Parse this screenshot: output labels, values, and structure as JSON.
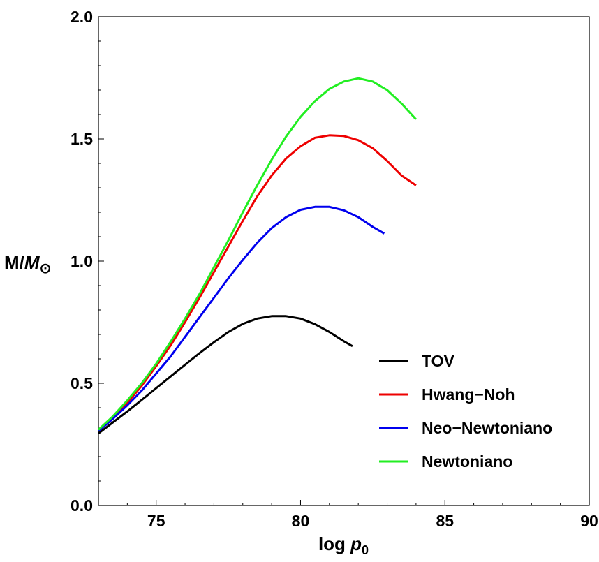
{
  "chart_data": {
    "type": "line",
    "title": "",
    "xlabel": {
      "main": "log ",
      "var": "p",
      "sub": "0"
    },
    "ylabel": {
      "main": "M/",
      "var": "M",
      "sub": "⊙"
    },
    "xlim": [
      73,
      90
    ],
    "ylim": [
      0,
      2
    ],
    "xticks": [
      75,
      80,
      85,
      90
    ],
    "xtick_labels": [
      "75",
      "80",
      "85",
      "90"
    ],
    "yticks": [
      0,
      0.5,
      1,
      1.5,
      2
    ],
    "ytick_labels": [
      "0.0",
      "0.5",
      "1.0",
      "1.5",
      "2.0"
    ],
    "grid": false,
    "legend_position": "bottom-right",
    "series": [
      {
        "name": "TOV",
        "color": "#000000",
        "x": [
          73.0,
          73.5,
          74.0,
          74.5,
          75.0,
          75.5,
          76.0,
          76.5,
          77.0,
          77.5,
          78.0,
          78.5,
          79.0,
          79.5,
          80.0,
          80.5,
          81.0,
          81.5,
          81.8
        ],
        "y": [
          0.295,
          0.34,
          0.385,
          0.432,
          0.48,
          0.528,
          0.576,
          0.623,
          0.668,
          0.71,
          0.743,
          0.765,
          0.775,
          0.775,
          0.765,
          0.742,
          0.71,
          0.672,
          0.652
        ]
      },
      {
        "name": "Hwang−Noh",
        "color": "#ee0000",
        "x": [
          73.0,
          73.5,
          74.0,
          74.5,
          75.0,
          75.5,
          76.0,
          76.5,
          77.0,
          77.5,
          78.0,
          78.5,
          79.0,
          79.5,
          80.0,
          80.5,
          81.0,
          81.5,
          82.0,
          82.5,
          83.0,
          83.5,
          84.0
        ],
        "y": [
          0.305,
          0.36,
          0.42,
          0.49,
          0.57,
          0.655,
          0.75,
          0.85,
          0.955,
          1.06,
          1.165,
          1.265,
          1.35,
          1.42,
          1.47,
          1.505,
          1.515,
          1.512,
          1.495,
          1.462,
          1.41,
          1.35,
          1.31
        ]
      },
      {
        "name": "Neo−Newtoniano",
        "color": "#0000ee",
        "x": [
          73.0,
          73.5,
          74.0,
          74.5,
          75.0,
          75.5,
          76.0,
          76.5,
          77.0,
          77.5,
          78.0,
          78.5,
          79.0,
          79.5,
          80.0,
          80.5,
          81.0,
          81.5,
          82.0,
          82.5,
          82.9
        ],
        "y": [
          0.305,
          0.355,
          0.41,
          0.47,
          0.54,
          0.61,
          0.69,
          0.77,
          0.85,
          0.93,
          1.005,
          1.075,
          1.135,
          1.18,
          1.21,
          1.222,
          1.222,
          1.208,
          1.18,
          1.14,
          1.113
        ]
      },
      {
        "name": "Newtoniano",
        "color": "#22ee22",
        "x": [
          73.0,
          73.5,
          74.0,
          74.5,
          75.0,
          75.5,
          76.0,
          76.5,
          77.0,
          77.5,
          78.0,
          78.5,
          79.0,
          79.5,
          80.0,
          80.5,
          81.0,
          81.5,
          82.0,
          82.5,
          83.0,
          83.5,
          84.0
        ],
        "y": [
          0.31,
          0.365,
          0.43,
          0.5,
          0.58,
          0.67,
          0.765,
          0.865,
          0.975,
          1.085,
          1.2,
          1.31,
          1.415,
          1.51,
          1.59,
          1.655,
          1.705,
          1.735,
          1.748,
          1.735,
          1.7,
          1.645,
          1.58
        ]
      }
    ]
  }
}
